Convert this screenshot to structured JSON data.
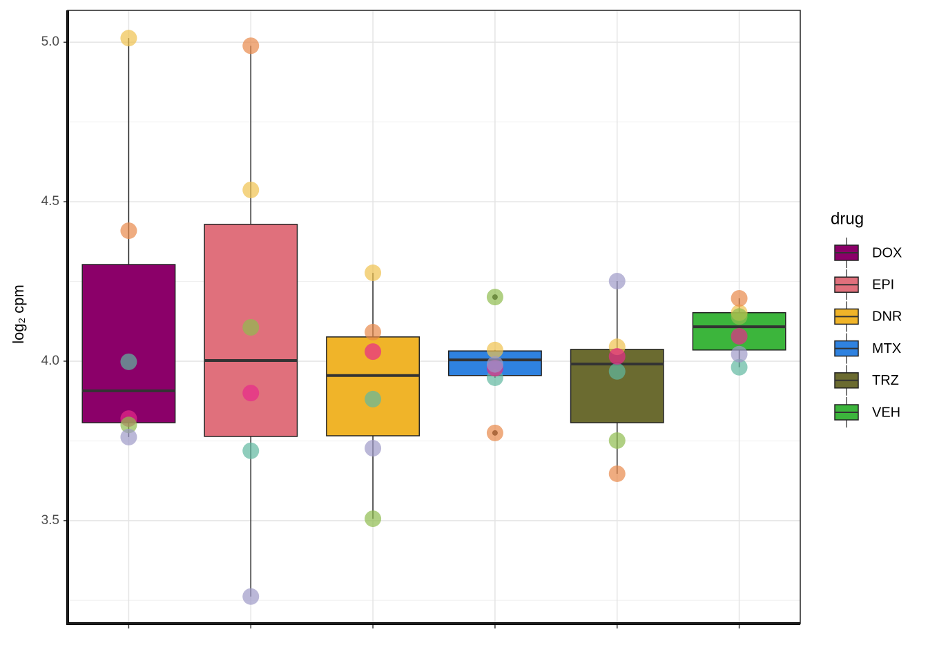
{
  "chart_data": {
    "type": "box",
    "y_label": "log₂ cpm",
    "legend_title": "drug",
    "categories": [
      null,
      null,
      null,
      null,
      null,
      null
    ],
    "ylim": [
      3.177,
      5.1
    ],
    "yticks": [
      3.5,
      {
        "value": 4,
        "label": "4.0"
      },
      4.5,
      {
        "value": 5,
        "label": "5.0"
      }
    ],
    "grid": true,
    "legend_position": "right",
    "point_colors": [
      "#f0c24f",
      "#e8894a",
      "#5fb8a0",
      "#e7298a",
      "#8fbc4f",
      "#9e9ac8"
    ],
    "series": [
      {
        "name": "DOX",
        "color": "#8b0069",
        "box": {
          "whisker_low": 3.762,
          "q1": 3.807,
          "median": 3.907,
          "q3": 4.303,
          "whisker_high": 5.013
        },
        "points": [
          5.013,
          4.409,
          3.998,
          3.82,
          3.8,
          3.762
        ]
      },
      {
        "name": "EPI",
        "color": "#e0707c",
        "box": {
          "whisker_low": 3.262,
          "q1": 3.764,
          "median": 4.002,
          "q3": 4.429,
          "whisker_high": 4.989
        },
        "points": [
          4.537,
          4.989,
          3.719,
          3.9,
          4.106,
          3.262
        ]
      },
      {
        "name": "DNR",
        "color": "#f0b429",
        "box": {
          "whisker_low": 3.506,
          "q1": 3.766,
          "median": 3.955,
          "q3": 4.076,
          "whisker_high": 4.277
        },
        "points": [
          4.277,
          4.091,
          3.881,
          4.03,
          3.506,
          3.727
        ]
      },
      {
        "name": "MTX",
        "color": "#2f82e0",
        "box": {
          "whisker_low": 3.948,
          "q1": 3.955,
          "median": 4.004,
          "q3": 4.032,
          "whisker_high": 4.035
        },
        "outliers": [
          4.201,
          3.775
        ],
        "points": [
          4.035,
          3.775,
          3.948,
          3.978,
          4.201,
          3.99
        ]
      },
      {
        "name": "TRZ",
        "color": "#6b6b30",
        "box": {
          "whisker_low": 3.647,
          "q1": 3.807,
          "median": 3.991,
          "q3": 4.037,
          "whisker_high": 4.251
        },
        "points": [
          4.045,
          3.647,
          3.968,
          4.015,
          3.751,
          4.251
        ]
      },
      {
        "name": "VEH",
        "color": "#3cb53c",
        "box": {
          "whisker_low": 3.981,
          "q1": 4.035,
          "median": 4.108,
          "q3": 4.152,
          "whisker_high": 4.197
        },
        "points": [
          4.152,
          4.197,
          3.981,
          4.078,
          4.14,
          4.022
        ]
      }
    ]
  }
}
